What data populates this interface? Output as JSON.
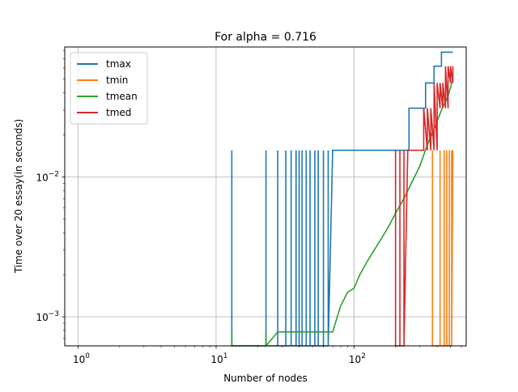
{
  "chart_data": {
    "type": "line",
    "title": "For alpha = 0.716",
    "xlabel": "Number of nodes",
    "ylabel": "Time over 20 essay(in seconds)",
    "xscale": "log",
    "yscale": "log",
    "xlim": [
      0.8,
      650
    ],
    "ylim": [
      0.00062,
      0.085
    ],
    "grid": true,
    "legend_position": "top-left",
    "x_major_ticks": [
      1,
      10,
      100
    ],
    "x_tick_labels": [
      "10^0",
      "10^1",
      "10^2"
    ],
    "y_major_ticks": [
      0.001,
      0.01
    ],
    "y_tick_labels": [
      "10^-3",
      "10^-2"
    ],
    "series": [
      {
        "name": "tmax",
        "color": "#1f77b4",
        "x": [
          13,
          13,
          13,
          23,
          23,
          23,
          28,
          28,
          28,
          32,
          32,
          32,
          35,
          35,
          35,
          38,
          38,
          38,
          40,
          40,
          40,
          42,
          42,
          42,
          45,
          45,
          45,
          48,
          48,
          48,
          52,
          52,
          52,
          55,
          55,
          55,
          60,
          60,
          60,
          65,
          65,
          65,
          70,
          70,
          250,
          250,
          330,
          330,
          380,
          380,
          430,
          430,
          520
        ],
        "y": [
          0.00062,
          0.0155,
          0.00062,
          0.00062,
          0.0155,
          0.00062,
          0.00062,
          0.0155,
          0.00062,
          0.00062,
          0.0155,
          0.00062,
          0.00062,
          0.0155,
          0.00062,
          0.00062,
          0.0155,
          0.00062,
          0.00062,
          0.0155,
          0.00062,
          0.00062,
          0.0155,
          0.00062,
          0.00062,
          0.0155,
          0.00062,
          0.00062,
          0.0155,
          0.00062,
          0.00062,
          0.0155,
          0.00062,
          0.00062,
          0.0155,
          0.00062,
          0.00062,
          0.0155,
          0.00062,
          0.00062,
          0.0155,
          0.00062,
          0.0155,
          0.0155,
          0.0155,
          0.031,
          0.031,
          0.047,
          0.047,
          0.062,
          0.062,
          0.078,
          0.078
        ]
      },
      {
        "name": "tmin",
        "color": "#ff7f0e",
        "x": [
          370,
          370,
          370,
          420,
          420,
          420,
          450,
          450,
          450,
          470,
          470,
          470,
          490,
          490,
          490,
          510,
          510,
          510,
          520
        ],
        "y": [
          0.00062,
          0.0155,
          0.00062,
          0.00062,
          0.0155,
          0.00062,
          0.00062,
          0.0155,
          0.00062,
          0.00062,
          0.0155,
          0.00062,
          0.00062,
          0.0155,
          0.00062,
          0.00062,
          0.0155,
          0.00062,
          0.0155
        ]
      },
      {
        "name": "tmean",
        "color": "#2ca02c",
        "x": [
          13,
          13,
          13,
          23,
          23,
          23,
          28,
          35,
          45,
          55,
          70,
          80,
          90,
          100,
          110,
          125,
          140,
          160,
          180,
          200,
          230,
          260,
          300,
          340,
          380,
          430,
          480,
          520
        ],
        "y": [
          0.00062,
          0.00078,
          0.00062,
          0.00062,
          0.00078,
          0.00062,
          0.00078,
          0.00078,
          0.00078,
          0.00078,
          0.00078,
          0.0012,
          0.0015,
          0.0016,
          0.002,
          0.0025,
          0.003,
          0.0037,
          0.0045,
          0.0055,
          0.007,
          0.009,
          0.012,
          0.017,
          0.022,
          0.03,
          0.038,
          0.05
        ]
      },
      {
        "name": "tmed",
        "color": "#d62728",
        "x": [
          200,
          200,
          200,
          215,
          215,
          215,
          230,
          230,
          230,
          245,
          245,
          245,
          260,
          260,
          260,
          280,
          280,
          280,
          300,
          300,
          300,
          320,
          320,
          340,
          340,
          360,
          360,
          380,
          380,
          400,
          400,
          420,
          420,
          440,
          440,
          460,
          460,
          480,
          480,
          500,
          500,
          520,
          520
        ],
        "y": [
          0.00062,
          0.0155,
          0.00062,
          0.00062,
          0.0155,
          0.00062,
          0.00062,
          0.0155,
          0.00062,
          0.0155,
          0.0155,
          0.0155,
          0.0155,
          0.0155,
          0.0155,
          0.0155,
          0.0155,
          0.0155,
          0.0155,
          0.0155,
          0.0155,
          0.0155,
          0.031,
          0.0155,
          0.031,
          0.0155,
          0.031,
          0.0155,
          0.047,
          0.0155,
          0.047,
          0.031,
          0.047,
          0.031,
          0.047,
          0.031,
          0.062,
          0.031,
          0.062,
          0.047,
          0.062,
          0.047,
          0.062
        ]
      }
    ]
  }
}
